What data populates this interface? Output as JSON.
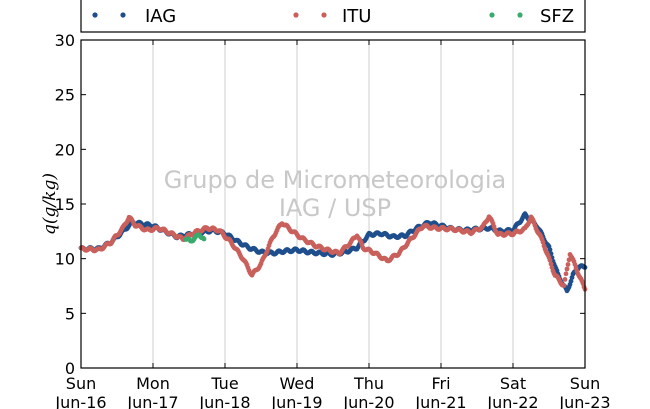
{
  "chart_data": {
    "type": "scatter",
    "ylabel": "q(g/kg)",
    "ylim": [
      0,
      30
    ],
    "yticks": [
      0,
      5,
      10,
      15,
      20,
      25,
      30
    ],
    "xlim": [
      "2013-06-16T00:00",
      "2013-06-23T00:00"
    ],
    "xtick_labels": [
      {
        "day": "Sun",
        "date": "Jun-16"
      },
      {
        "day": "Mon",
        "date": "Jun-17"
      },
      {
        "day": "Tue",
        "date": "Jun-18"
      },
      {
        "day": "Wed",
        "date": "Jun-19"
      },
      {
        "day": "Thu",
        "date": "Jun-20"
      },
      {
        "day": "Fri",
        "date": "Jun-21"
      },
      {
        "day": "Sat",
        "date": "Jun-22"
      },
      {
        "day": "Sun",
        "date": "Jun-23"
      }
    ],
    "grid": "vertical",
    "legend_placement": "top",
    "watermark": [
      "Grupo de Micrometeorologia",
      "IAG / USP"
    ],
    "series": [
      {
        "name": "IAG",
        "color": "#1f4e8c",
        "points": [
          [
            "2013-06-16T00:00",
            10.9
          ],
          [
            "2013-06-16T06:00",
            10.9
          ],
          [
            "2013-06-16T10:00",
            11.5
          ],
          [
            "2013-06-16T14:00",
            12.5
          ],
          [
            "2013-06-16T17:00",
            13.3
          ],
          [
            "2013-06-16T20:00",
            13.2
          ],
          [
            "2013-06-17T00:00",
            13.0
          ],
          [
            "2013-06-17T04:00",
            12.5
          ],
          [
            "2013-06-17T08:00",
            12.0
          ],
          [
            "2013-06-17T12:00",
            12.2
          ],
          [
            "2013-06-17T16:00",
            12.4
          ],
          [
            "2013-06-17T20:00",
            12.6
          ],
          [
            "2013-06-18T00:00",
            12.3
          ],
          [
            "2013-06-18T04:00",
            11.6
          ],
          [
            "2013-06-18T08:00",
            11.0
          ],
          [
            "2013-06-18T12:00",
            10.6
          ],
          [
            "2013-06-18T16:00",
            10.5
          ],
          [
            "2013-06-18T20:00",
            10.7
          ],
          [
            "2013-06-19T00:00",
            10.8
          ],
          [
            "2013-06-19T04:00",
            10.6
          ],
          [
            "2013-06-19T08:00",
            10.5
          ],
          [
            "2013-06-19T12:00",
            10.4
          ],
          [
            "2013-06-19T16:00",
            10.6
          ],
          [
            "2013-06-19T20:00",
            11.0
          ],
          [
            "2013-06-20T00:00",
            12.2
          ],
          [
            "2013-06-20T04:00",
            12.3
          ],
          [
            "2013-06-20T08:00",
            12.0
          ],
          [
            "2013-06-20T12:00",
            12.1
          ],
          [
            "2013-06-20T16:00",
            12.8
          ],
          [
            "2013-06-20T20:00",
            13.3
          ],
          [
            "2013-06-21T00:00",
            13.0
          ],
          [
            "2013-06-21T04:00",
            12.7
          ],
          [
            "2013-06-21T08:00",
            12.6
          ],
          [
            "2013-06-21T12:00",
            12.7
          ],
          [
            "2013-06-21T16:00",
            12.8
          ],
          [
            "2013-06-21T20:00",
            12.5
          ],
          [
            "2013-06-22T00:00",
            12.6
          ],
          [
            "2013-06-22T04:00",
            14.0
          ],
          [
            "2013-06-22T08:00",
            13.0
          ],
          [
            "2013-06-22T12:00",
            11.0
          ],
          [
            "2013-06-22T15:00",
            8.5
          ],
          [
            "2013-06-22T18:00",
            7.0
          ],
          [
            "2013-06-22T20:00",
            8.5
          ],
          [
            "2013-06-22T22:00",
            9.3
          ],
          [
            "2013-06-23T00:00",
            9.2
          ]
        ]
      },
      {
        "name": "ITU",
        "color": "#c9605b",
        "points": [
          [
            "2013-06-16T00:00",
            10.9
          ],
          [
            "2013-06-16T06:00",
            10.8
          ],
          [
            "2013-06-16T10:00",
            11.5
          ],
          [
            "2013-06-16T14:00",
            12.8
          ],
          [
            "2013-06-16T16:00",
            13.8
          ],
          [
            "2013-06-16T18:00",
            13.1
          ],
          [
            "2013-06-16T22:00",
            12.6
          ],
          [
            "2013-06-17T02:00",
            12.8
          ],
          [
            "2013-06-17T06:00",
            12.3
          ],
          [
            "2013-06-17T10:00",
            11.8
          ],
          [
            "2013-06-17T14:00",
            12.4
          ],
          [
            "2013-06-17T18:00",
            12.8
          ],
          [
            "2013-06-17T22:00",
            12.6
          ],
          [
            "2013-06-18T02:00",
            11.5
          ],
          [
            "2013-06-18T06:00",
            10.0
          ],
          [
            "2013-06-18T09:00",
            8.5
          ],
          [
            "2013-06-18T12:00",
            9.5
          ],
          [
            "2013-06-18T16:00",
            12.0
          ],
          [
            "2013-06-18T19:00",
            13.3
          ],
          [
            "2013-06-18T22:00",
            12.6
          ],
          [
            "2013-06-19T02:00",
            11.8
          ],
          [
            "2013-06-19T06:00",
            11.2
          ],
          [
            "2013-06-19T10:00",
            10.8
          ],
          [
            "2013-06-19T14:00",
            10.5
          ],
          [
            "2013-06-19T18:00",
            11.5
          ],
          [
            "2013-06-19T20:00",
            12.2
          ],
          [
            "2013-06-19T22:00",
            11.0
          ],
          [
            "2013-06-20T02:00",
            10.5
          ],
          [
            "2013-06-20T06:00",
            9.8
          ],
          [
            "2013-06-20T10:00",
            10.5
          ],
          [
            "2013-06-20T14:00",
            11.8
          ],
          [
            "2013-06-20T18:00",
            13.0
          ],
          [
            "2013-06-20T22:00",
            12.8
          ],
          [
            "2013-06-21T04:00",
            12.7
          ],
          [
            "2013-06-21T10:00",
            12.4
          ],
          [
            "2013-06-21T14:00",
            12.9
          ],
          [
            "2013-06-21T16:00",
            13.9
          ],
          [
            "2013-06-21T19:00",
            12.2
          ],
          [
            "2013-06-22T00:00",
            12.3
          ],
          [
            "2013-06-22T04:00",
            12.7
          ],
          [
            "2013-06-22T06:00",
            13.8
          ],
          [
            "2013-06-22T10:00",
            11.5
          ],
          [
            "2013-06-22T14:00",
            8.5
          ],
          [
            "2013-06-22T17:00",
            7.5
          ],
          [
            "2013-06-22T19:00",
            10.5
          ],
          [
            "2013-06-22T22:00",
            8.5
          ],
          [
            "2013-06-23T00:00",
            7.2
          ]
        ]
      },
      {
        "name": "SFZ",
        "color": "#3aaa6e",
        "points": [
          [
            "2013-06-17T11:00",
            11.8
          ],
          [
            "2013-06-17T12:30",
            11.6
          ],
          [
            "2013-06-17T14:00",
            11.9
          ],
          [
            "2013-06-17T15:30",
            12.2
          ],
          [
            "2013-06-17T17:00",
            11.8
          ]
        ]
      }
    ]
  }
}
